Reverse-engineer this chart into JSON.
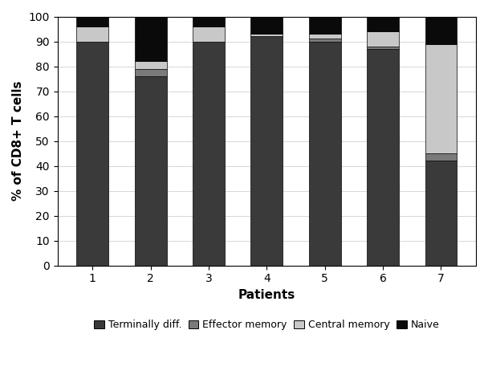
{
  "patients": [
    "1",
    "2",
    "3",
    "4",
    "5",
    "6",
    "7"
  ],
  "terminally_diff": [
    90,
    76,
    90,
    92,
    90,
    87,
    42
  ],
  "effector_memory": [
    0,
    3,
    0,
    0,
    1,
    1,
    3
  ],
  "central_memory": [
    6,
    3,
    6,
    1,
    2,
    6,
    44
  ],
  "naive": [
    4,
    18,
    4,
    7,
    7,
    6,
    11
  ],
  "colors": {
    "terminally_diff": "#3a3a3a",
    "effector_memory": "#7a7a7a",
    "central_memory": "#c8c8c8",
    "naive": "#0a0a0a"
  },
  "ylabel": "% of CD8+ T cells",
  "xlabel": "Patients",
  "ylim": [
    0,
    100
  ],
  "yticks": [
    0,
    10,
    20,
    30,
    40,
    50,
    60,
    70,
    80,
    90,
    100
  ],
  "legend_labels": [
    "Terminally diff.",
    "Effector memory",
    "Central memory",
    "Naive"
  ],
  "axis_fontsize": 11,
  "tick_fontsize": 10,
  "legend_fontsize": 9,
  "bar_width": 0.55,
  "edgecolor": "#000000"
}
